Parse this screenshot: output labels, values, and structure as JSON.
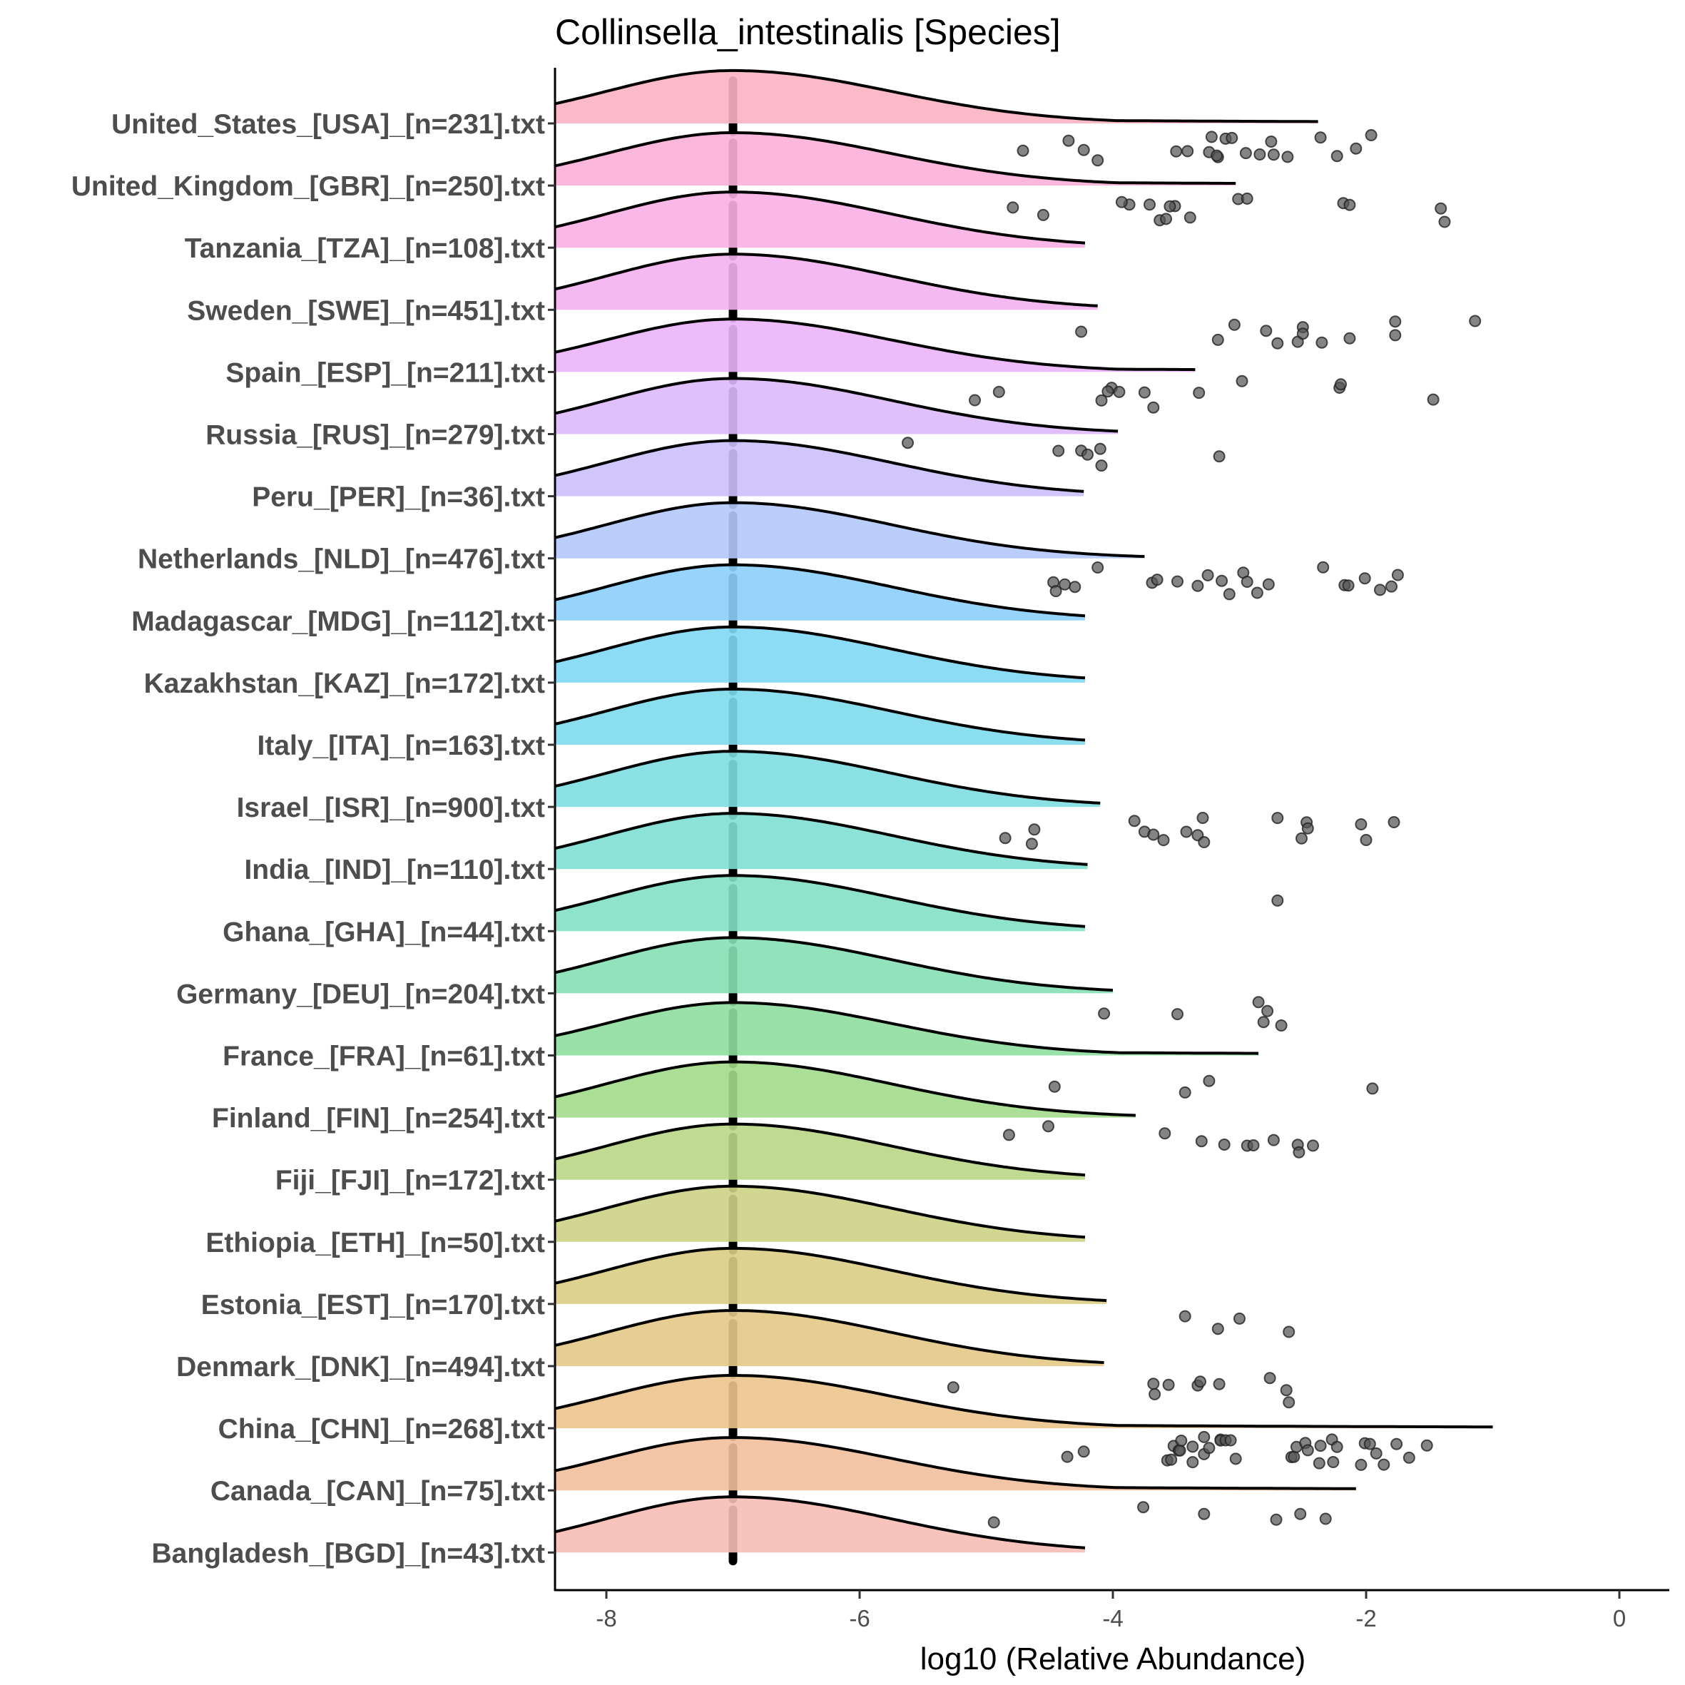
{
  "chart_data": {
    "type": "ridgeline",
    "title": "Collinsella_intestinalis [Species]",
    "xlabel": "log10 (Relative Abundance)",
    "ylabel": "",
    "xlim": [
      -8.4,
      0.4
    ],
    "xticks": [
      -8,
      -6,
      -4,
      -2,
      0
    ],
    "xtick_labels": [
      "-8",
      "-6",
      "-4",
      "-2",
      "0"
    ],
    "grid": false,
    "legend": "none",
    "density_mode": -7.0,
    "median_marker": -7.0,
    "point_color": "#555555",
    "categories": [
      "United_States_[USA]_[n=231].txt",
      "United_Kingdom_[GBR]_[n=250].txt",
      "Tanzania_[TZA]_[n=108].txt",
      "Sweden_[SWE]_[n=451].txt",
      "Spain_[ESP]_[n=211].txt",
      "Russia_[RUS]_[n=279].txt",
      "Peru_[PER]_[n=36].txt",
      "Netherlands_[NLD]_[n=476].txt",
      "Madagascar_[MDG]_[n=112].txt",
      "Kazakhstan_[KAZ]_[n=172].txt",
      "Italy_[ITA]_[n=163].txt",
      "Israel_[ISR]_[n=900].txt",
      "India_[IND]_[n=110].txt",
      "Ghana_[GHA]_[n=44].txt",
      "Germany_[DEU]_[n=204].txt",
      "France_[FRA]_[n=61].txt",
      "Finland_[FIN]_[n=254].txt",
      "Fiji_[FJI]_[n=172].txt",
      "Ethiopia_[ETH]_[n=50].txt",
      "Estonia_[EST]_[n=170].txt",
      "Denmark_[DNK]_[n=494].txt",
      "China_[CHN]_[n=268].txt",
      "Canada_[CAN]_[n=75].txt",
      "Bangladesh_[BGD]_[n=43].txt"
    ],
    "series": [
      {
        "name": "United_States_[USA]_[n=231].txt",
        "color": "#fbb3c2",
        "density_max_x": -2.38,
        "points": [
          -4.71,
          -4.35,
          -4.23,
          -4.12,
          -3.5,
          -3.41,
          -3.22,
          -3.17,
          -3.24,
          -3.18,
          -2.95,
          -2.75,
          -2.73,
          -2.36,
          -2.08,
          -3.11,
          -3.06,
          -2.84,
          -2.62,
          -2.23,
          -1.96
        ]
      },
      {
        "name": "United_Kingdom_[GBR]_[n=250].txt",
        "color": "#fbb0d8",
        "density_max_x": -3.03,
        "points": [
          -4.79,
          -4.55,
          -3.87,
          -3.93,
          -3.71,
          -3.63,
          -3.58,
          -3.51,
          -3.55,
          -3.39,
          -3.01,
          -2.94,
          -2.18,
          -2.13,
          -1.41,
          -1.38
        ]
      },
      {
        "name": "Tanzania_[TZA]_[n=108].txt",
        "color": "#f9b0e6",
        "density_max_x": -4.22,
        "points": []
      },
      {
        "name": "Sweden_[SWE]_[n=451].txt",
        "color": "#f4b1f0",
        "density_max_x": -4.12,
        "points": [
          -4.25,
          -3.17,
          -3.04,
          -2.79,
          -2.7,
          -2.54,
          -2.5,
          -2.5,
          -2.35,
          -2.13,
          -1.77,
          -1.77,
          -1.14
        ]
      },
      {
        "name": "Spain_[ESP]_[n=211].txt",
        "color": "#ebb4f8",
        "density_max_x": -3.35,
        "points": [
          -5.09,
          -4.9,
          -4.09,
          -4.01,
          -4.04,
          -3.95,
          -3.75,
          -3.68,
          -3.32,
          -2.98,
          -2.21,
          -2.2,
          -1.47
        ]
      },
      {
        "name": "Russia_[RUS]_[n=279].txt",
        "color": "#ddb9fa",
        "density_max_x": -3.96,
        "points": [
          -5.62,
          -4.43,
          -4.25,
          -4.2,
          -4.1,
          -4.09,
          -3.16
        ]
      },
      {
        "name": "Peru_[PER]_[n=36].txt",
        "color": "#cbc0fb",
        "density_max_x": -4.23,
        "points": []
      },
      {
        "name": "Netherlands_[NLD]_[n=476].txt",
        "color": "#b4c8fb",
        "density_max_x": -3.75,
        "points": [
          -4.47,
          -4.45,
          -4.38,
          -4.3,
          -4.12,
          -3.69,
          -3.65,
          -3.49,
          -3.33,
          -3.25,
          -3.14,
          -3.08,
          -2.97,
          -2.94,
          -2.86,
          -2.77,
          -2.34,
          -2.17,
          -2.14,
          -2.01,
          -1.89,
          -1.8,
          -1.75
        ]
      },
      {
        "name": "Madagascar_[MDG]_[n=112].txt",
        "color": "#8ccffb",
        "density_max_x": -4.22,
        "points": []
      },
      {
        "name": "Kazakhstan_[KAZ]_[n=172].txt",
        "color": "#80d8f5",
        "density_max_x": -4.22,
        "points": []
      },
      {
        "name": "Italy_[ITA]_[n=163].txt",
        "color": "#7edaec",
        "density_max_x": -4.22,
        "points": []
      },
      {
        "name": "Israel_[ISR]_[n=900].txt",
        "color": "#7edde1",
        "density_max_x": -4.1,
        "points": [
          -4.85,
          -4.64,
          -4.62,
          -3.83,
          -3.75,
          -3.68,
          -3.6,
          -3.42,
          -3.33,
          -3.29,
          -3.28,
          -2.7,
          -2.47,
          -2.46,
          -2.51,
          -2.04,
          -2.0,
          -1.78
        ]
      },
      {
        "name": "India_[IND]_[n=110].txt",
        "color": "#7fdfd3",
        "density_max_x": -4.2,
        "points": [
          -2.7
        ]
      },
      {
        "name": "Ghana_[GHA]_[n=44].txt",
        "color": "#82e0c4",
        "density_max_x": -4.22,
        "points": []
      },
      {
        "name": "Germany_[DEU]_[n=204].txt",
        "color": "#86e0b4",
        "density_max_x": -4.0,
        "points": [
          -4.07,
          -3.49,
          -2.85,
          -2.78,
          -2.81,
          -2.67
        ]
      },
      {
        "name": "France_[FRA]_[n=61].txt",
        "color": "#8fdea0",
        "density_max_x": -2.85,
        "points": [
          -4.46,
          -3.43,
          -3.24,
          -1.95
        ]
      },
      {
        "name": "Finland_[FIN]_[n=254].txt",
        "color": "#a3db8b",
        "density_max_x": -3.82,
        "points": [
          -4.82,
          -4.51,
          -3.59,
          -3.3,
          -3.12,
          -2.94,
          -2.89,
          -2.73,
          -2.54,
          -2.53,
          -2.42
        ]
      },
      {
        "name": "Fiji_[FJI]_[n=172].txt",
        "color": "#bad686",
        "density_max_x": -4.22,
        "points": []
      },
      {
        "name": "Ethiopia_[ETH]_[n=50].txt",
        "color": "#ccd284",
        "density_max_x": -4.22,
        "points": []
      },
      {
        "name": "Estonia_[EST]_[n=170].txt",
        "color": "#d9cd84",
        "density_max_x": -4.05,
        "points": [
          -3.43,
          -3.17,
          -3.0,
          -2.61
        ]
      },
      {
        "name": "Denmark_[DNK]_[n=494].txt",
        "color": "#e3c987",
        "density_max_x": -4.07,
        "points": [
          -5.26,
          -3.68,
          -3.67,
          -3.56,
          -3.33,
          -3.31,
          -3.16,
          -2.76,
          -2.63,
          -2.61
        ]
      },
      {
        "name": "China_[CHN]_[n=268].txt",
        "color": "#ebc48c",
        "density_max_x": -1.0,
        "points": [
          -4.36,
          -4.23,
          -3.57,
          -3.54,
          -3.52,
          -3.48,
          -3.47,
          -3.46,
          -3.37,
          -3.37,
          -3.28,
          -3.28,
          -3.24,
          -3.15,
          -3.15,
          -3.11,
          -3.07,
          -3.03,
          -2.59,
          -2.57,
          -2.55,
          -2.48,
          -2.46,
          -2.37,
          -2.36,
          -2.27,
          -2.26,
          -2.23,
          -2.04,
          -2.01,
          -1.97,
          -1.92,
          -1.86,
          -1.76,
          -1.66,
          -1.52
        ]
      },
      {
        "name": "Canada_[CAN]_[n=75].txt",
        "color": "#f1bf9c",
        "density_max_x": -2.08,
        "points": [
          -4.94,
          -3.76,
          -3.28,
          -2.71,
          -2.52,
          -2.32
        ]
      },
      {
        "name": "Bangladesh_[BGD]_[n=43].txt",
        "color": "#f7bbb6",
        "density_max_x": -4.22,
        "points": []
      }
    ]
  }
}
